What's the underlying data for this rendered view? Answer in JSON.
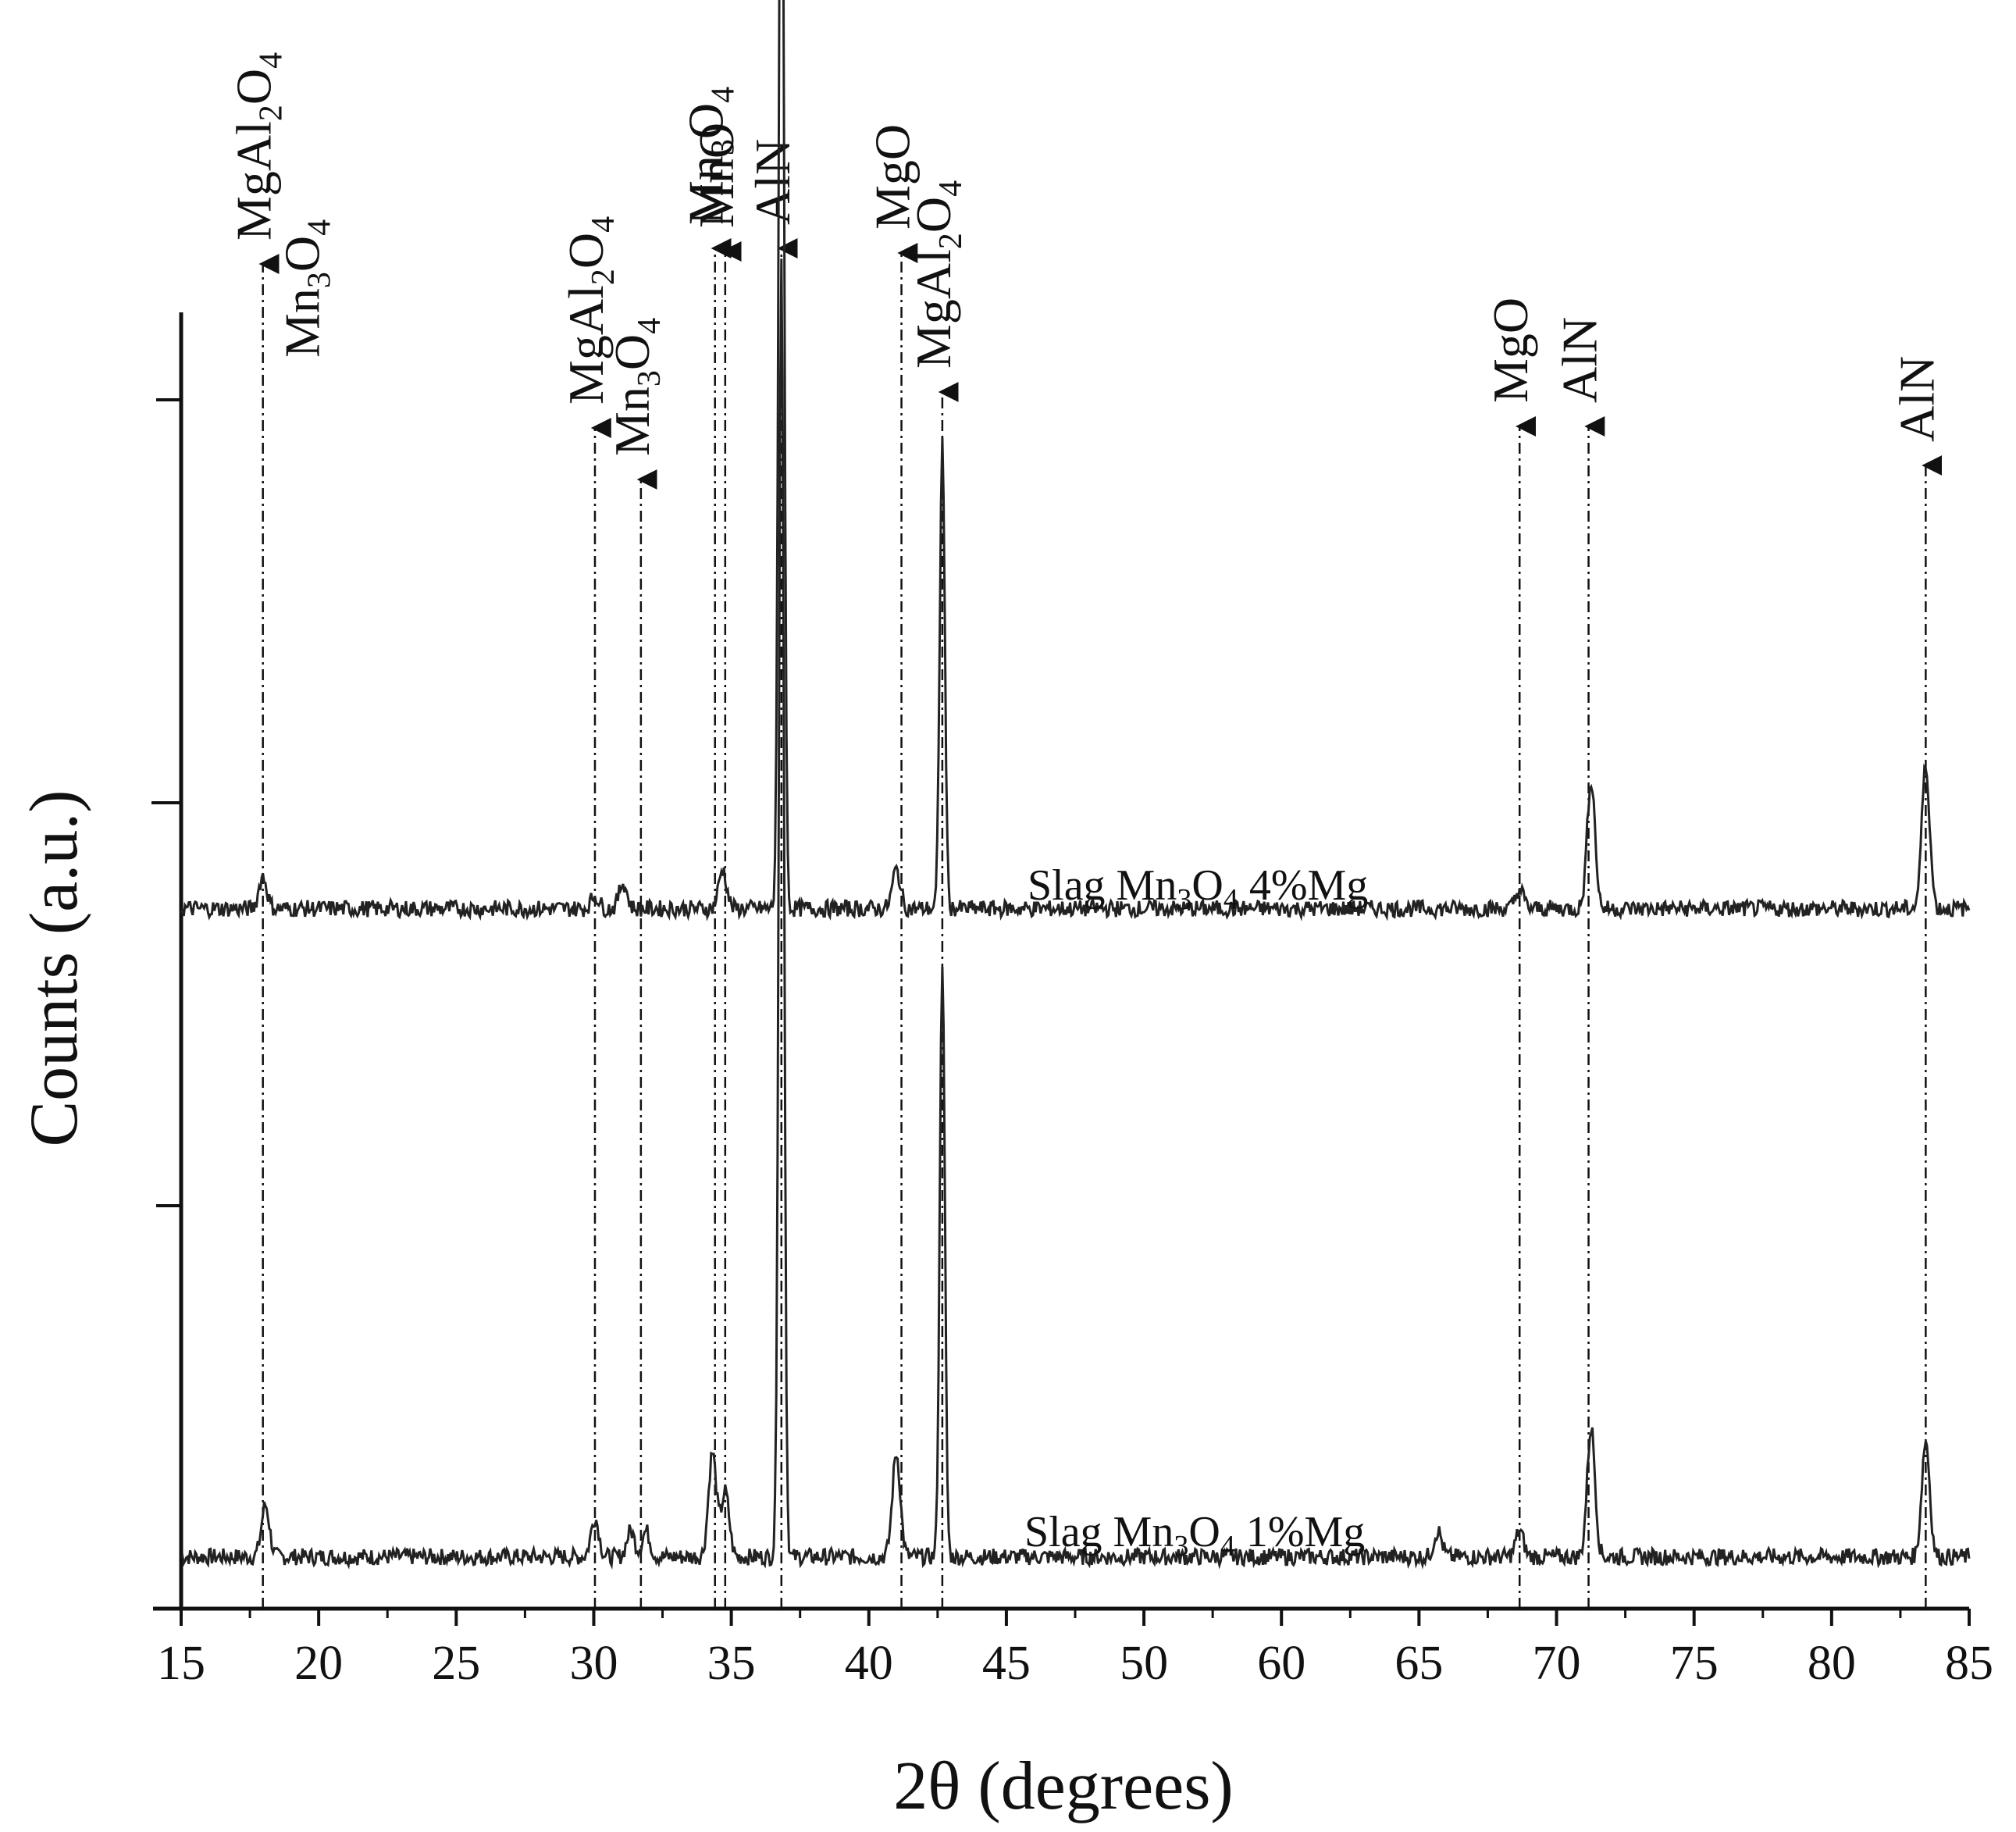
{
  "chart_data": {
    "type": "line",
    "xlabel": "2θ (degrees)",
    "ylabel": "Counts (a.u.)",
    "xlim": [
      15,
      85
    ],
    "ylim": [
      0,
      100
    ],
    "x_ticks": [
      "15",
      "20",
      "25",
      "30",
      "35",
      "40",
      "45",
      "50",
      "60",
      "65",
      "70",
      "75",
      "80",
      "85"
    ],
    "y_ticks_labeled": false,
    "grid": false,
    "series": [
      {
        "name": "Slag Mn3O4 1%Mg",
        "label_parts": [
          "Slag Mn",
          "3",
          "O",
          "4",
          " 1%Mg"
        ],
        "baseline": 4,
        "peaks": [
          {
            "x": 18.3,
            "h": 4
          },
          {
            "x": 31.2,
            "h": 3
          },
          {
            "x": 32.6,
            "h": 2
          },
          {
            "x": 33.2,
            "h": 2
          },
          {
            "x": 35.8,
            "h": 8
          },
          {
            "x": 36.3,
            "h": 5
          },
          {
            "x": 38.5,
            "h": 100
          },
          {
            "x": 43.0,
            "h": 8
          },
          {
            "x": 44.8,
            "h": 46
          },
          {
            "x": 64.2,
            "h": 2
          },
          {
            "x": 67.4,
            "h": 2
          },
          {
            "x": 70.2,
            "h": 10
          },
          {
            "x": 83.3,
            "h": 9
          }
        ]
      },
      {
        "name": "Slag Mn3O4 4%Mg",
        "label_parts": [
          "Slag Mn",
          "3",
          "O",
          "4",
          " 4%Mg"
        ],
        "baseline": 54,
        "peaks": [
          {
            "x": 18.2,
            "h": 2.5
          },
          {
            "x": 31.2,
            "h": 1
          },
          {
            "x": 32.3,
            "h": 2
          },
          {
            "x": 36.2,
            "h": 3
          },
          {
            "x": 38.5,
            "h": 100
          },
          {
            "x": 43.0,
            "h": 3
          },
          {
            "x": 44.8,
            "h": 36
          },
          {
            "x": 67.4,
            "h": 1.5
          },
          {
            "x": 70.2,
            "h": 10
          },
          {
            "x": 83.3,
            "h": 11
          }
        ]
      }
    ],
    "phase_markers": [
      {
        "x": 18.2,
        "lines": [
          {
            "t": "MgAl",
            "s": "2",
            "t2": "O",
            "s2": "4"
          },
          {
            "t": "Mn",
            "s": "3",
            "t2": "O",
            "s2": "4"
          }
        ]
      },
      {
        "x": 31.2,
        "lines": [
          {
            "t": "MgAl",
            "s": "2",
            "t2": "O",
            "s2": "4"
          }
        ]
      },
      {
        "x": 33.0,
        "lines": [
          {
            "t": "Mn",
            "s": "3",
            "t2": "O",
            "s2": "4"
          }
        ]
      },
      {
        "x": 35.9,
        "lines": [
          {
            "t": "Mn",
            "s": "3",
            "t2": "O",
            "s2": "4"
          }
        ]
      },
      {
        "x": 36.3,
        "lines": [
          {
            "t": "MnO"
          }
        ]
      },
      {
        "x": 38.5,
        "lines": [
          {
            "t": "AlN"
          }
        ]
      },
      {
        "x": 43.2,
        "lines": [
          {
            "t": "MgO"
          }
        ]
      },
      {
        "x": 44.8,
        "lines": [
          {
            "t": "MgAl",
            "s": "2",
            "t2": "O",
            "s2": "4"
          }
        ]
      },
      {
        "x": 67.4,
        "lines": [
          {
            "t": "MgO"
          }
        ]
      },
      {
        "x": 70.1,
        "lines": [
          {
            "t": "AlN"
          }
        ]
      },
      {
        "x": 83.3,
        "lines": [
          {
            "t": "AlN"
          }
        ]
      }
    ]
  }
}
